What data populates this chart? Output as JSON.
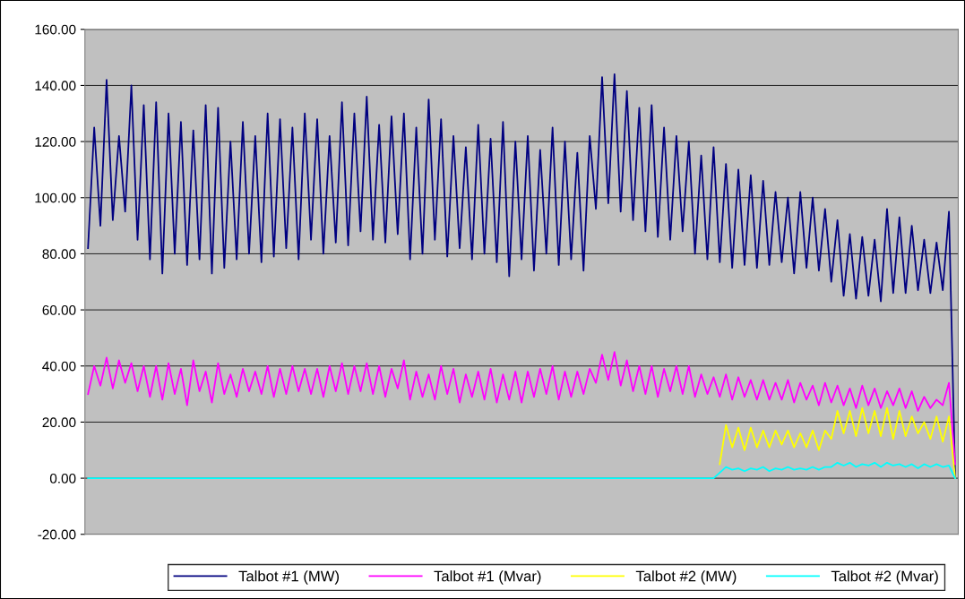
{
  "chart_data": {
    "type": "line",
    "categories": [
      null,
      null,
      null,
      null,
      null,
      null,
      null,
      null,
      null,
      null,
      null,
      null,
      null,
      null,
      null,
      null,
      null,
      null,
      null,
      null,
      null,
      null,
      null,
      null,
      null,
      null,
      null,
      null,
      null,
      null,
      null,
      null,
      null,
      null,
      null,
      null,
      null,
      null,
      null,
      null,
      null,
      null,
      null,
      null,
      null,
      null,
      null,
      null,
      null,
      null,
      null,
      null,
      null,
      null,
      null,
      null,
      null,
      null,
      null,
      null,
      null,
      null,
      null,
      null,
      null,
      null,
      null,
      null,
      null,
      null,
      null,
      null,
      null,
      null,
      null,
      null,
      null,
      null,
      null,
      null,
      null,
      null,
      null,
      null,
      null,
      null,
      null,
      null,
      null,
      null,
      null,
      null,
      null,
      null,
      null,
      null,
      null,
      null,
      null,
      null,
      null,
      null,
      null,
      null,
      null,
      null,
      null,
      null,
      null,
      null,
      null,
      null,
      null,
      null,
      null,
      null,
      null,
      null,
      null,
      null,
      null,
      null,
      null,
      null,
      null,
      null,
      null,
      null,
      null,
      null,
      null,
      null,
      null,
      null,
      null,
      null,
      null,
      null,
      null,
      null,
      null
    ],
    "series": [
      {
        "name": "Talbot #1 (MW)",
        "color": "#000080",
        "values": [
          82,
          125,
          90,
          142,
          92,
          122,
          95,
          140,
          85,
          133,
          78,
          134,
          73,
          130,
          80,
          127,
          76,
          124,
          78,
          133,
          73,
          132,
          75,
          120,
          78,
          127,
          80,
          122,
          77,
          130,
          79,
          128,
          82,
          125,
          78,
          130,
          85,
          128,
          80,
          122,
          84,
          134,
          83,
          130,
          88,
          136,
          85,
          126,
          84,
          129,
          87,
          130,
          78,
          125,
          80,
          135,
          85,
          128,
          79,
          122,
          82,
          118,
          78,
          126,
          80,
          121,
          77,
          127,
          72,
          120,
          78,
          122,
          74,
          117,
          80,
          125,
          76,
          120,
          78,
          116,
          74,
          122,
          96,
          143,
          98,
          144,
          95,
          138,
          92,
          132,
          88,
          133,
          86,
          125,
          85,
          122,
          88,
          120,
          80,
          115,
          78,
          118,
          77,
          112,
          75,
          110,
          76,
          108,
          75,
          106,
          76,
          102,
          77,
          100,
          73,
          102,
          75,
          100,
          74,
          96,
          70,
          92,
          65,
          87,
          64,
          86,
          65,
          85,
          63,
          96,
          66,
          93,
          66,
          90,
          67,
          85,
          66,
          84,
          67,
          95,
          0
        ]
      },
      {
        "name": "Talbot #1 (Mvar)",
        "color": "#ff00ff",
        "values": [
          30,
          40,
          33,
          43,
          32,
          42,
          34,
          41,
          31,
          40,
          29,
          40,
          28,
          41,
          30,
          39,
          26,
          42,
          31,
          38,
          27,
          41,
          30,
          37,
          29,
          39,
          31,
          38,
          30,
          40,
          29,
          39,
          30,
          40,
          31,
          39,
          30,
          39,
          29,
          40,
          31,
          41,
          30,
          40,
          31,
          41,
          30,
          40,
          29,
          39,
          32,
          42,
          28,
          38,
          29,
          37,
          28,
          40,
          30,
          39,
          27,
          37,
          29,
          38,
          28,
          39,
          27,
          37,
          28,
          38,
          27,
          38,
          29,
          39,
          30,
          40,
          28,
          38,
          29,
          38,
          30,
          39,
          34,
          44,
          35,
          45,
          33,
          42,
          31,
          40,
          30,
          40,
          29,
          39,
          31,
          40,
          30,
          40,
          29,
          37,
          30,
          36,
          29,
          37,
          28,
          36,
          29,
          35,
          28,
          35,
          28,
          34,
          28,
          35,
          27,
          34,
          28,
          33,
          26,
          34,
          27,
          33,
          26,
          32,
          25,
          33,
          26,
          32,
          25,
          31,
          26,
          32,
          25,
          31,
          24,
          29,
          25,
          28,
          26,
          34,
          5
        ]
      },
      {
        "name": "Talbot #2 (MW)",
        "color": "#ffff00",
        "values": [
          null,
          null,
          null,
          null,
          null,
          null,
          null,
          null,
          null,
          null,
          null,
          null,
          null,
          null,
          null,
          null,
          null,
          null,
          null,
          null,
          null,
          null,
          null,
          null,
          null,
          null,
          null,
          null,
          null,
          null,
          null,
          null,
          null,
          null,
          null,
          null,
          null,
          null,
          null,
          null,
          null,
          null,
          null,
          null,
          null,
          null,
          null,
          null,
          null,
          null,
          null,
          null,
          null,
          null,
          null,
          null,
          null,
          null,
          null,
          null,
          null,
          null,
          null,
          null,
          null,
          null,
          null,
          null,
          null,
          null,
          null,
          null,
          null,
          null,
          null,
          null,
          null,
          null,
          null,
          null,
          null,
          null,
          null,
          null,
          null,
          null,
          null,
          null,
          null,
          null,
          null,
          null,
          null,
          null,
          null,
          null,
          null,
          null,
          null,
          null,
          null,
          null,
          5,
          19,
          11,
          18,
          10,
          18,
          11,
          17,
          11,
          17,
          12,
          17,
          11,
          16,
          11,
          17,
          10,
          17,
          14,
          24,
          16,
          24,
          15,
          25,
          16,
          24,
          15,
          25,
          14,
          24,
          15,
          22,
          16,
          20,
          14,
          22,
          13,
          22,
          0
        ]
      },
      {
        "name": "Talbot #2 (Mvar)",
        "color": "#00ffff",
        "values": [
          0,
          0,
          0,
          0,
          0,
          0,
          0,
          0,
          0,
          0,
          0,
          0,
          0,
          0,
          0,
          0,
          0,
          0,
          0,
          0,
          0,
          0,
          0,
          0,
          0,
          0,
          0,
          0,
          0,
          0,
          0,
          0,
          0,
          0,
          0,
          0,
          0,
          0,
          0,
          0,
          0,
          0,
          0,
          0,
          0,
          0,
          0,
          0,
          0,
          0,
          0,
          0,
          0,
          0,
          0,
          0,
          0,
          0,
          0,
          0,
          0,
          0,
          0,
          0,
          0,
          0,
          0,
          0,
          0,
          0,
          0,
          0,
          0,
          0,
          0,
          0,
          0,
          0,
          0,
          0,
          0,
          0,
          0,
          0,
          0,
          0,
          0,
          0,
          0,
          0,
          0,
          0,
          0,
          0,
          0,
          0,
          0,
          0,
          0,
          0,
          0,
          0,
          2,
          4,
          3,
          3.5,
          2.5,
          3.5,
          3,
          4,
          2.5,
          3.5,
          3,
          4,
          3,
          3.5,
          3,
          4,
          3,
          4,
          4,
          5.5,
          4.5,
          5.5,
          4,
          5,
          4.5,
          5.5,
          4,
          5.5,
          4.5,
          5,
          4,
          5,
          3.5,
          5,
          4,
          5,
          4,
          4.5,
          0
        ]
      }
    ],
    "ylim": [
      -20,
      160
    ],
    "yticks": [
      {
        "value": -20,
        "label": "-20.00"
      },
      {
        "value": 0,
        "label": "0.00"
      },
      {
        "value": 20,
        "label": "20.00"
      },
      {
        "value": 40,
        "label": "40.00"
      },
      {
        "value": 60,
        "label": "60.00"
      },
      {
        "value": 80,
        "label": "80.00"
      },
      {
        "value": 100,
        "label": "100.00"
      },
      {
        "value": 120,
        "label": "120.00"
      },
      {
        "value": 140,
        "label": "140.00"
      },
      {
        "value": 160,
        "label": "160.00"
      }
    ],
    "grid": "y",
    "legend": "bottom",
    "tick_labels": "y",
    "marker": "none",
    "line_style": "solid"
  }
}
